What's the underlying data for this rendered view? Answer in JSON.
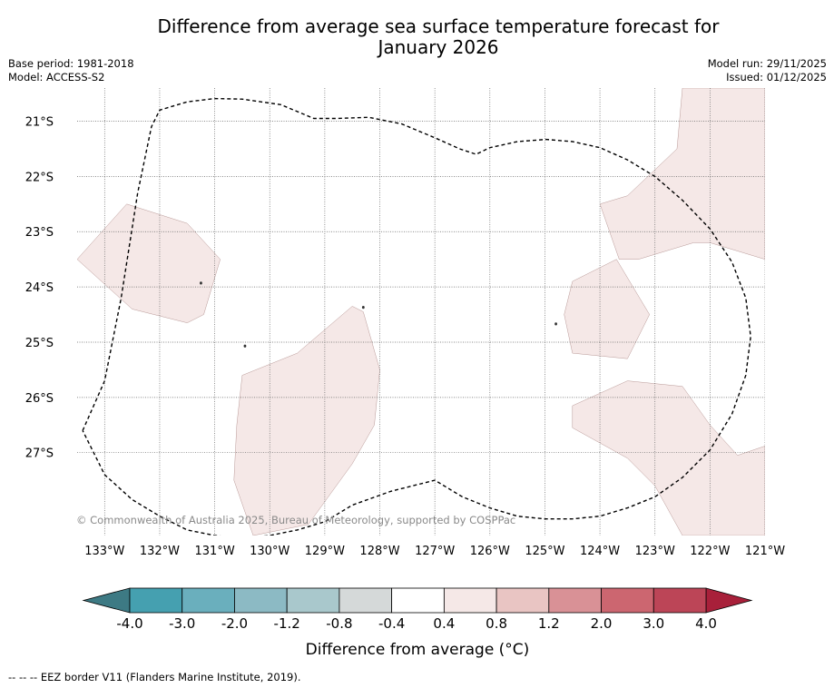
{
  "header": {
    "title_line1": "Difference from average sea surface temperature forecast for",
    "title_line2": "January 2026",
    "base_period": "Base period: 1981-2018",
    "model": "Model: ACCESS-S2",
    "model_run": "Model run: 29/11/2025",
    "issued": "Issued: 01/12/2025"
  },
  "chart_data": {
    "type": "heatmap",
    "map_extent": {
      "lon": [
        -133.5,
        -121.0
      ],
      "lat": [
        -28.5,
        -20.4
      ]
    },
    "lon_ticks": [
      {
        "value": -133,
        "label": "133°W"
      },
      {
        "value": -132,
        "label": "132°W"
      },
      {
        "value": -131,
        "label": "131°W"
      },
      {
        "value": -130,
        "label": "130°W"
      },
      {
        "value": -129,
        "label": "129°W"
      },
      {
        "value": -128,
        "label": "128°W"
      },
      {
        "value": -127,
        "label": "127°W"
      },
      {
        "value": -126,
        "label": "126°W"
      },
      {
        "value": -125,
        "label": "125°W"
      },
      {
        "value": -124,
        "label": "124°W"
      },
      {
        "value": -123,
        "label": "123°W"
      },
      {
        "value": -122,
        "label": "122°W"
      },
      {
        "value": -121,
        "label": "121°W"
      }
    ],
    "lat_ticks": [
      {
        "value": -21,
        "label": "21°S"
      },
      {
        "value": -22,
        "label": "22°S"
      },
      {
        "value": -23,
        "label": "23°S"
      },
      {
        "value": -24,
        "label": "24°S"
      },
      {
        "value": -25,
        "label": "25°S"
      },
      {
        "value": -26,
        "label": "26°S"
      },
      {
        "value": -27,
        "label": "27°S"
      }
    ],
    "anomaly_regions": [
      {
        "name": "west-patch",
        "range": "0.4 to 0.8",
        "polygon": [
          [
            -133.5,
            -23.5
          ],
          [
            -132.6,
            -22.5
          ],
          [
            -131.5,
            -22.85
          ],
          [
            -130.9,
            -23.5
          ],
          [
            -131.2,
            -24.5
          ],
          [
            -131.5,
            -24.65
          ],
          [
            -132.5,
            -24.4
          ]
        ]
      },
      {
        "name": "central-patch",
        "range": "0.4 to 0.8",
        "polygon": [
          [
            -130.5,
            -25.6
          ],
          [
            -129.5,
            -25.2
          ],
          [
            -128.5,
            -24.35
          ],
          [
            -128.3,
            -24.45
          ],
          [
            -128.0,
            -25.5
          ],
          [
            -128.1,
            -26.5
          ],
          [
            -128.5,
            -27.2
          ],
          [
            -129.3,
            -28.3
          ],
          [
            -130.3,
            -28.5
          ],
          [
            -130.65,
            -27.5
          ],
          [
            -130.6,
            -26.5
          ]
        ]
      },
      {
        "name": "east-north-patch",
        "range": "0.4 to 0.8",
        "polygon": [
          [
            -122.5,
            -20.4
          ],
          [
            -121.0,
            -20.4
          ],
          [
            -121.0,
            -23.5
          ],
          [
            -122.0,
            -23.2
          ],
          [
            -122.3,
            -23.2
          ],
          [
            -123.3,
            -23.5
          ],
          [
            -123.65,
            -23.5
          ],
          [
            -124.0,
            -22.5
          ],
          [
            -123.5,
            -22.35
          ],
          [
            -122.6,
            -21.5
          ]
        ]
      },
      {
        "name": "east-middle-patch",
        "range": "0.4 to 0.8",
        "polygon": [
          [
            -124.5,
            -23.9
          ],
          [
            -123.7,
            -23.5
          ],
          [
            -123.1,
            -24.5
          ],
          [
            -123.5,
            -25.3
          ],
          [
            -124.5,
            -25.2
          ],
          [
            -124.65,
            -24.5
          ]
        ]
      },
      {
        "name": "east-south-patch",
        "range": "0.4 to 0.8",
        "polygon": [
          [
            -124.5,
            -26.15
          ],
          [
            -123.5,
            -25.7
          ],
          [
            -122.5,
            -25.8
          ],
          [
            -122.0,
            -26.5
          ],
          [
            -121.5,
            -27.05
          ],
          [
            -121.0,
            -26.88
          ],
          [
            -121.0,
            -28.5
          ],
          [
            -122.5,
            -28.5
          ],
          [
            -123.0,
            -27.6
          ],
          [
            -123.5,
            -27.1
          ],
          [
            -124.5,
            -26.55
          ]
        ]
      }
    ],
    "eez_border": [
      [
        -133.4,
        -26.6
      ],
      [
        -133.0,
        -25.7
      ],
      [
        -132.7,
        -24.2
      ],
      [
        -132.4,
        -22.3
      ],
      [
        -132.15,
        -21.1
      ],
      [
        -132.0,
        -20.8
      ],
      [
        -131.5,
        -20.65
      ],
      [
        -131.0,
        -20.59
      ],
      [
        -130.5,
        -20.6
      ],
      [
        -129.8,
        -20.7
      ],
      [
        -129.2,
        -20.95
      ],
      [
        -128.8,
        -20.95
      ],
      [
        -128.2,
        -20.93
      ],
      [
        -127.6,
        -21.05
      ],
      [
        -127.0,
        -21.3
      ],
      [
        -126.55,
        -21.5
      ],
      [
        -126.25,
        -21.6
      ],
      [
        -126.0,
        -21.48
      ],
      [
        -125.5,
        -21.37
      ],
      [
        -124.98,
        -21.33
      ],
      [
        -124.5,
        -21.37
      ],
      [
        -124.0,
        -21.48
      ],
      [
        -123.5,
        -21.7
      ],
      [
        -123.0,
        -22.0
      ],
      [
        -122.5,
        -22.43
      ],
      [
        -122.0,
        -22.95
      ],
      [
        -121.6,
        -23.55
      ],
      [
        -121.35,
        -24.2
      ],
      [
        -121.26,
        -24.9
      ],
      [
        -121.35,
        -25.6
      ],
      [
        -121.6,
        -26.3
      ],
      [
        -122.0,
        -26.95
      ],
      [
        -122.5,
        -27.45
      ],
      [
        -123.0,
        -27.8
      ],
      [
        -123.5,
        -28.0
      ],
      [
        -124.0,
        -28.15
      ],
      [
        -124.5,
        -28.2
      ],
      [
        -125.0,
        -28.2
      ],
      [
        -125.5,
        -28.15
      ],
      [
        -126.0,
        -28.0
      ],
      [
        -126.5,
        -27.8
      ],
      [
        -127.0,
        -27.5
      ],
      [
        -127.4,
        -27.6
      ],
      [
        -127.8,
        -27.7
      ],
      [
        -128.5,
        -27.95
      ],
      [
        -129.0,
        -28.25
      ],
      [
        -129.5,
        -28.4
      ],
      [
        -130.0,
        -28.5
      ],
      [
        -130.5,
        -28.55
      ],
      [
        -131.0,
        -28.5
      ],
      [
        -131.5,
        -28.4
      ],
      [
        -132.0,
        -28.15
      ],
      [
        -132.5,
        -27.85
      ],
      [
        -133.0,
        -27.4
      ],
      [
        -133.4,
        -26.6
      ]
    ],
    "islands": [
      [
        -128.3,
        -24.37
      ],
      [
        -131.25,
        -23.93
      ],
      [
        -130.45,
        -25.07
      ],
      [
        -124.8,
        -24.67
      ]
    ],
    "copyright": "© Commonwealth of Australia 2025, Bureau of Meteorology, supported by COSPPac",
    "colorbar": {
      "label": "Difference from average (°C)",
      "ticks": [
        "-4.0",
        "-3.0",
        "-2.0",
        "-1.2",
        "-0.8",
        "-0.4",
        "0.4",
        "0.8",
        "1.2",
        "2.0",
        "3.0",
        "4.0"
      ],
      "colors": [
        "#45a0b0",
        "#6aafbd",
        "#8cbac4",
        "#a9c8cc",
        "#d5d9d9",
        "#ffffff",
        "#f5e8e7",
        "#e9c5c3",
        "#d99196",
        "#cc6670",
        "#bc4557"
      ],
      "extend_min_color": "#3d7a84",
      "extend_max_color": "#a8203a"
    },
    "region_fill_color": "#f5e8e7",
    "region_edge_color": "#b89896"
  },
  "footnote": "--  --  -- EEZ border V11 (Flanders Marine Institute, 2019)."
}
